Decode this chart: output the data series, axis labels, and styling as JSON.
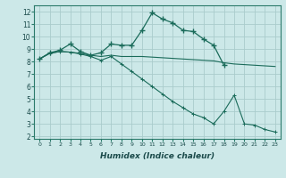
{
  "background_color": "#cce8e8",
  "grid_color": "#aacccc",
  "line_color": "#1a6b5a",
  "xlabel": "Humidex (Indice chaleur)",
  "xlim": [
    -0.5,
    23.5
  ],
  "ylim": [
    1.8,
    12.5
  ],
  "yticks": [
    2,
    3,
    4,
    5,
    6,
    7,
    8,
    9,
    10,
    11,
    12
  ],
  "xticks": [
    0,
    1,
    2,
    3,
    4,
    5,
    6,
    7,
    8,
    9,
    10,
    11,
    12,
    13,
    14,
    15,
    16,
    17,
    18,
    19,
    20,
    21,
    22,
    23
  ],
  "line1_x": [
    0,
    1,
    2,
    3,
    4,
    5,
    6,
    7,
    8,
    9,
    10,
    11,
    12,
    13,
    14,
    15,
    16,
    17,
    18
  ],
  "line1_y": [
    8.2,
    8.7,
    8.9,
    9.4,
    8.8,
    8.5,
    8.7,
    9.4,
    9.3,
    9.3,
    10.5,
    11.9,
    11.4,
    11.1,
    10.5,
    10.4,
    9.8,
    9.3,
    7.7
  ],
  "line2_x": [
    0,
    1,
    2,
    3,
    4,
    5,
    6,
    7,
    8,
    9,
    10,
    11,
    12,
    13,
    14,
    15,
    16,
    17,
    18,
    19,
    20,
    21,
    22,
    23
  ],
  "line2_y": [
    8.2,
    8.65,
    8.8,
    8.75,
    8.65,
    8.5,
    8.4,
    8.5,
    8.4,
    8.4,
    8.4,
    8.35,
    8.3,
    8.25,
    8.2,
    8.15,
    8.1,
    8.05,
    7.9,
    7.8,
    7.75,
    7.7,
    7.65,
    7.6
  ],
  "line3_x": [
    0,
    1,
    2,
    3,
    4,
    5,
    6,
    7,
    8,
    9,
    10,
    11,
    12,
    13,
    14,
    15,
    16,
    17,
    18,
    19,
    20,
    21,
    22,
    23
  ],
  "line3_y": [
    8.2,
    8.65,
    8.8,
    8.75,
    8.6,
    8.4,
    8.1,
    8.4,
    7.8,
    7.2,
    6.6,
    6.0,
    5.4,
    4.8,
    4.3,
    3.8,
    3.5,
    3.0,
    4.0,
    5.3,
    3.0,
    2.9,
    2.55,
    2.35
  ]
}
